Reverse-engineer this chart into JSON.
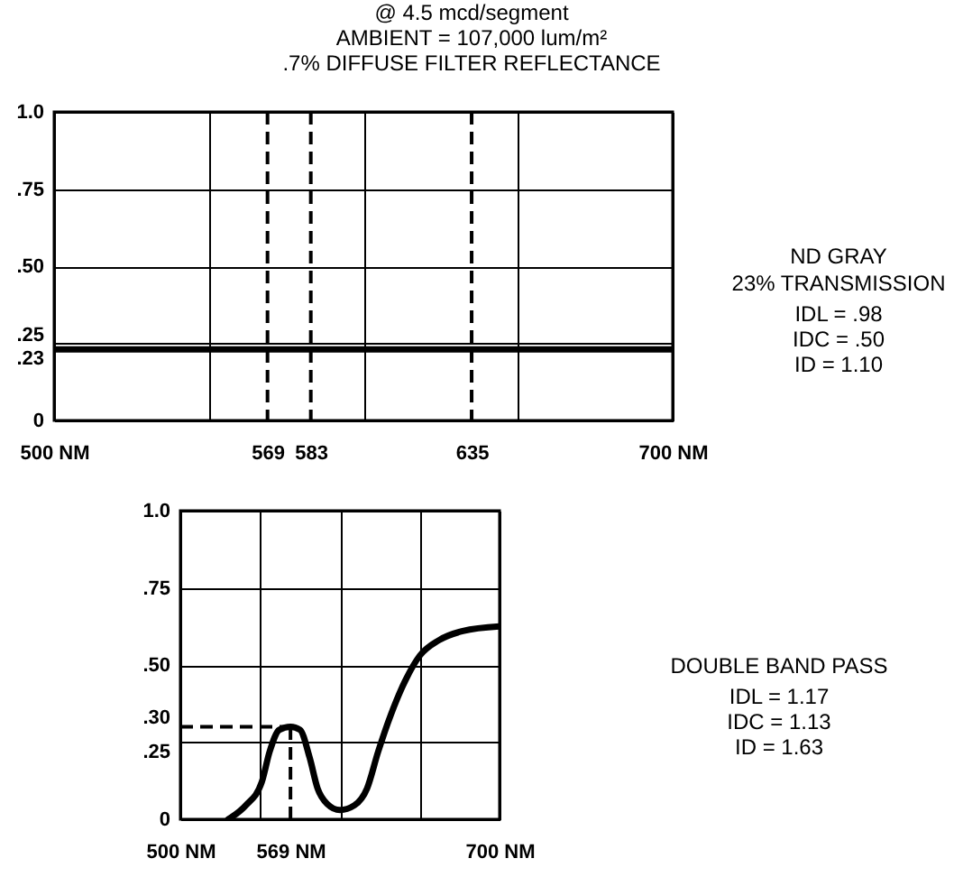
{
  "chart_data": [
    {
      "type": "line",
      "title": "@ 4.5 mcd/segment",
      "subtitle": "AMBIENT = 107,000 lum/m²\n.7% DIFFUSE FILTER REFLECTANCE",
      "x": [
        500,
        700
      ],
      "series": [
        {
          "color": "#000000",
          "values": [
            0.23,
            0.23
          ]
        }
      ],
      "xlim": [
        500,
        700
      ],
      "ylim": [
        0,
        1
      ],
      "xticks": [
        {
          "value": 500,
          "label": "500 NM"
        },
        {
          "value": 550,
          "label": null
        },
        {
          "value": 569,
          "label": "569"
        },
        {
          "value": 583,
          "label": "583"
        },
        {
          "value": 600,
          "label": null
        },
        {
          "value": 635,
          "label": "635"
        },
        {
          "value": 650,
          "label": null
        },
        {
          "value": 700,
          "label": "700 NM"
        }
      ],
      "yticks": [
        {
          "value": 0,
          "label": "0"
        },
        {
          "value": 0.23,
          "label": ".23"
        },
        {
          "value": 0.25,
          "label": ".25"
        },
        {
          "value": 0.5,
          "label": ".50"
        },
        {
          "value": 0.75,
          "label": ".75"
        },
        {
          "value": 1,
          "label": "1.0"
        }
      ],
      "grid": true,
      "ref_lines": [
        {
          "axis": "x",
          "value": 569,
          "line_style": "dashed"
        },
        {
          "axis": "x",
          "value": 583,
          "line_style": "dashed"
        },
        {
          "axis": "x",
          "value": 635,
          "line_style": "dashed"
        }
      ],
      "annotations": [
        "ND GRAY",
        "23% TRANSMISSION",
        "IDL =  .98",
        "IDC =  .50",
        "ID = 1.10"
      ]
    },
    {
      "type": "line",
      "x": [
        530,
        541,
        551,
        556,
        562,
        569,
        575,
        581,
        586,
        592,
        600,
        609,
        617,
        624,
        632,
        641,
        650,
        662,
        677,
        700
      ],
      "series": [
        {
          "color": "#000000",
          "values": [
            0,
            0.045,
            0.12,
            0.22,
            0.29,
            0.3,
            0.29,
            0.2,
            0.1,
            0.05,
            0.03,
            0.045,
            0.1,
            0.22,
            0.34,
            0.45,
            0.53,
            0.58,
            0.61,
            0.625
          ]
        }
      ],
      "xlim": [
        500,
        700
      ],
      "ylim": [
        0,
        1
      ],
      "xticks": [
        {
          "value": 500,
          "label": "500 NM"
        },
        {
          "value": 550,
          "label": null
        },
        {
          "value": 569,
          "label": "569 NM"
        },
        {
          "value": 600,
          "label": null
        },
        {
          "value": 650,
          "label": null
        },
        {
          "value": 700,
          "label": "700 NM"
        }
      ],
      "yticks": [
        {
          "value": 0,
          "label": "0"
        },
        {
          "value": 0.25,
          "label": ".25"
        },
        {
          "value": 0.3,
          "label": ".30"
        },
        {
          "value": 0.5,
          "label": ".50"
        },
        {
          "value": 0.75,
          "label": ".75"
        },
        {
          "value": 1,
          "label": "1.0"
        }
      ],
      "grid": true,
      "ref_lines": [
        {
          "axis": "x",
          "value": 569,
          "line_style": "dashed"
        },
        {
          "axis": "y",
          "value": 0.3,
          "line_style": "dashed"
        }
      ],
      "annotations": [
        "DOUBLE BAND PASS",
        "IDL = 1.17",
        "IDC = 1.13",
        "ID = 1.63"
      ]
    }
  ]
}
